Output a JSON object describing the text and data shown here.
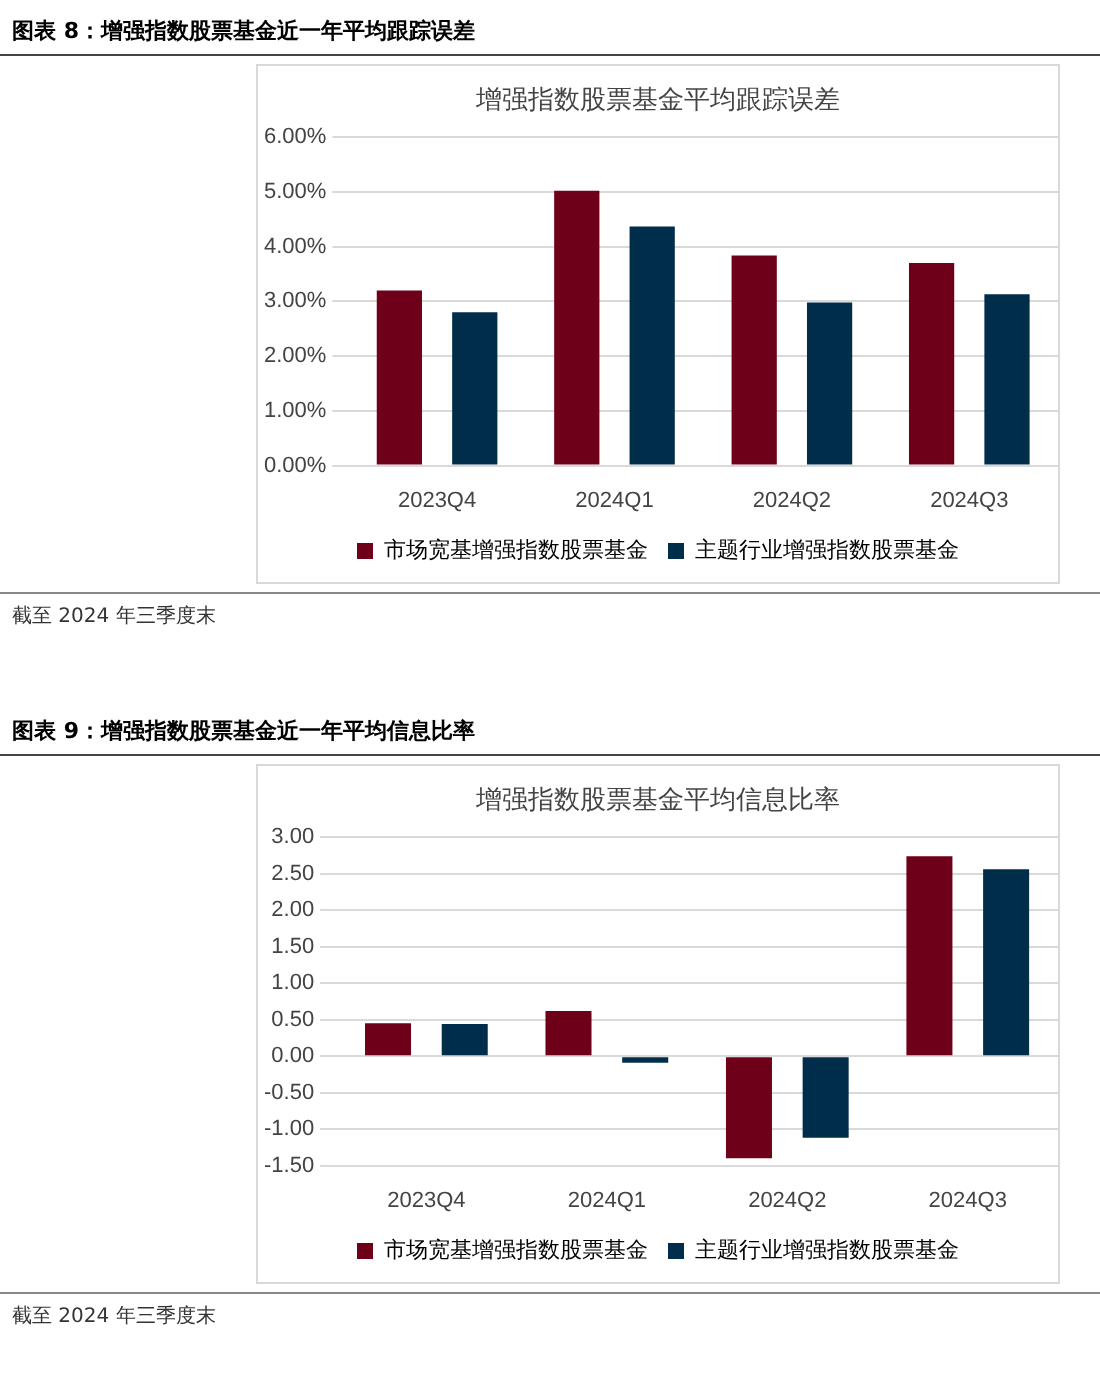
{
  "chart_data": [
    {
      "type": "bar",
      "title": "图表 8：增强指数股票基金近一年平均跟踪误差",
      "subtitle": "增强指数股票基金平均跟踪误差",
      "categories": [
        "2023Q4",
        "2024Q1",
        "2024Q2",
        "2024Q3"
      ],
      "series": [
        {
          "name": "市场宽基增强指数股票基金",
          "color": "#6e0019",
          "values": [
            3.2,
            5.02,
            3.84,
            3.7
          ]
        },
        {
          "name": "主题行业增强指数股票基金",
          "color": "#002d4a",
          "values": [
            2.8,
            4.37,
            2.98,
            3.13
          ]
        }
      ],
      "ylim": [
        0,
        6
      ],
      "yticks": [
        {
          "value": 0,
          "label": "0.00%"
        },
        {
          "value": 1,
          "label": "1.00%"
        },
        {
          "value": 2,
          "label": "2.00%"
        },
        {
          "value": 3,
          "label": "3.00%"
        },
        {
          "value": 4,
          "label": "4.00%"
        },
        {
          "value": 5,
          "label": "5.00%"
        },
        {
          "value": 6,
          "label": "6.00%"
        }
      ],
      "grid": "y",
      "legend": "bottom",
      "annotations": [
        "截至 2024 年三季度末"
      ]
    },
    {
      "type": "bar",
      "title": "图表 9：增强指数股票基金近一年平均信息比率",
      "subtitle": "增强指数股票基金平均信息比率",
      "categories": [
        "2023Q4",
        "2024Q1",
        "2024Q2",
        "2024Q3"
      ],
      "series": [
        {
          "name": "市场宽基增强指数股票基金",
          "color": "#6e0019",
          "values": [
            0.45,
            0.62,
            -1.4,
            2.74
          ]
        },
        {
          "name": "主题行业增强指数股票基金",
          "color": "#002d4a",
          "values": [
            0.44,
            -0.09,
            -1.12,
            2.56
          ]
        }
      ],
      "ylim": [
        -1.5,
        3
      ],
      "yticks": [
        {
          "value": -1.5,
          "label": "-1.50"
        },
        {
          "value": -1,
          "label": "-1.00"
        },
        {
          "value": -0.5,
          "label": "-0.50"
        },
        {
          "value": 0,
          "label": "0.00"
        },
        {
          "value": 0.5,
          "label": "0.50"
        },
        {
          "value": 1,
          "label": "1.00"
        },
        {
          "value": 1.5,
          "label": "1.50"
        },
        {
          "value": 2,
          "label": "2.00"
        },
        {
          "value": 2.5,
          "label": "2.50"
        },
        {
          "value": 3,
          "label": "3.00"
        }
      ],
      "grid": "y",
      "legend": "bottom",
      "annotations": [
        "截至 2024 年三季度末"
      ]
    }
  ]
}
